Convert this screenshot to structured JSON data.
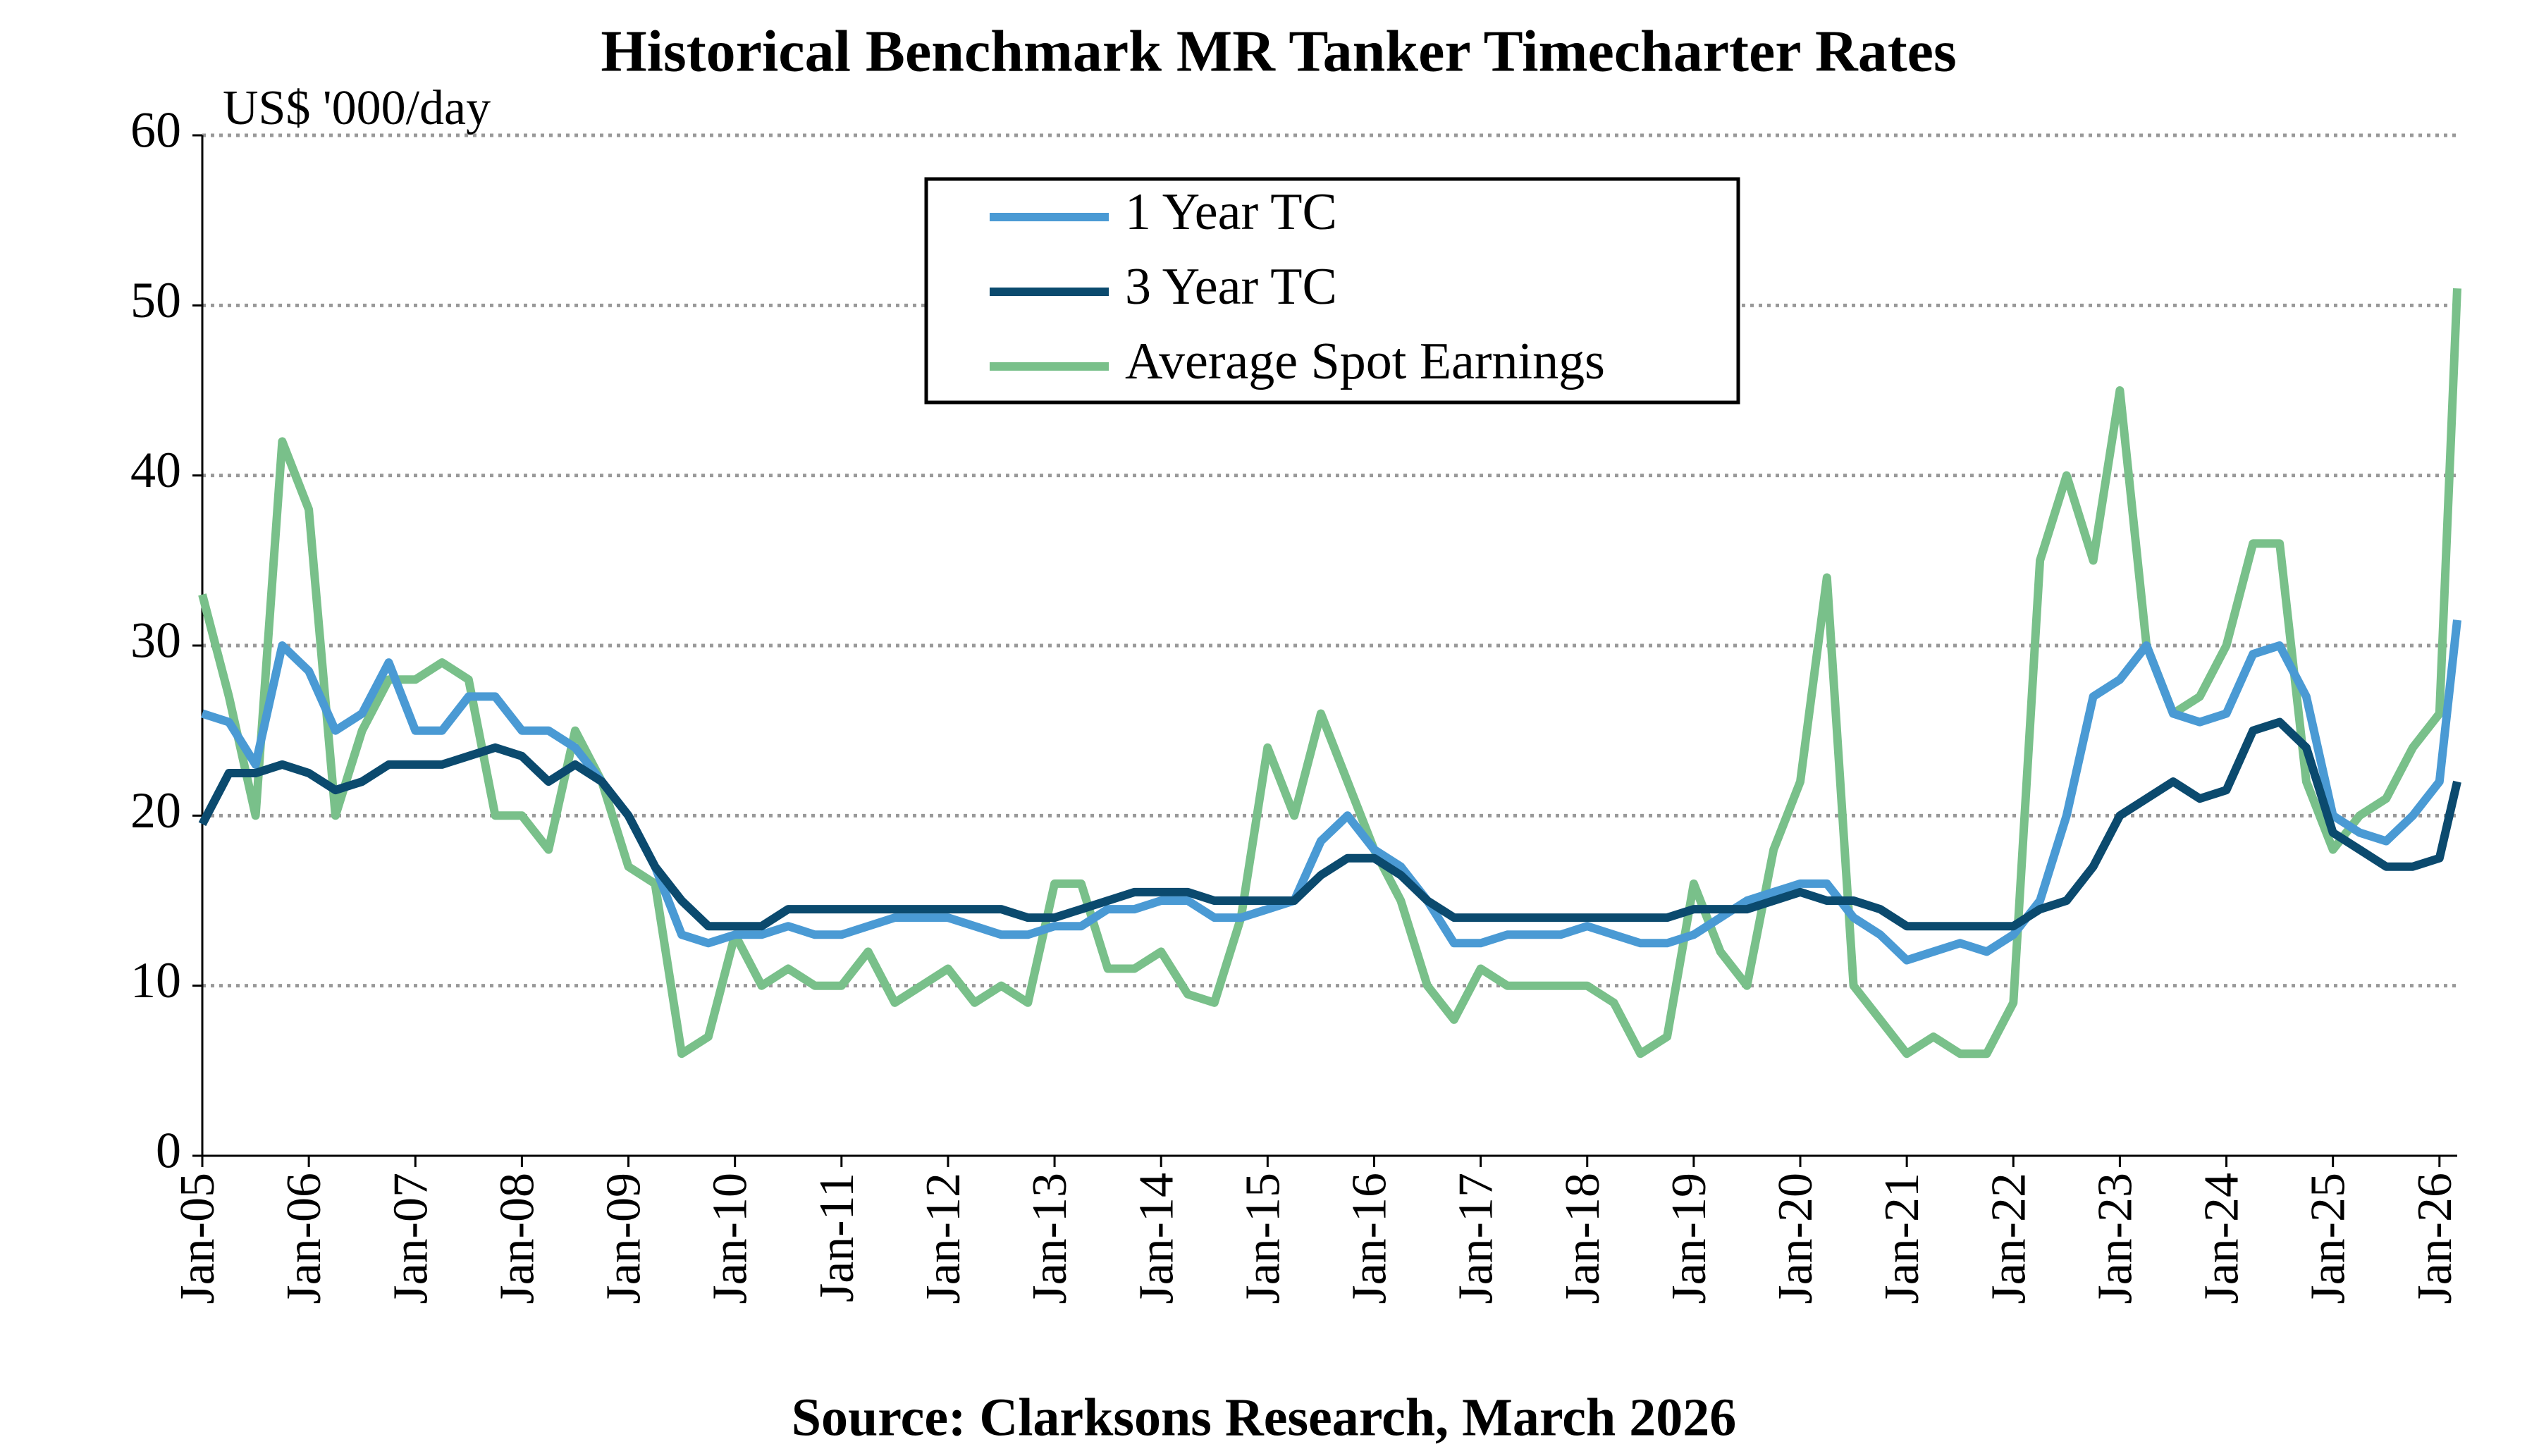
{
  "chart_data": {
    "type": "line",
    "title": "Historical Benchmark MR Tanker Timecharter Rates",
    "y_label": "US$ '000/day",
    "source": "Source: Clarksons Research, March 2026",
    "x": [
      "2005-01",
      "2005-04",
      "2005-07",
      "2005-10",
      "2006-01",
      "2006-04",
      "2006-07",
      "2006-10",
      "2007-01",
      "2007-04",
      "2007-07",
      "2007-10",
      "2008-01",
      "2008-04",
      "2008-07",
      "2008-10",
      "2009-01",
      "2009-04",
      "2009-07",
      "2009-10",
      "2010-01",
      "2010-04",
      "2010-07",
      "2010-10",
      "2011-01",
      "2011-04",
      "2011-07",
      "2011-10",
      "2012-01",
      "2012-04",
      "2012-07",
      "2012-10",
      "2013-01",
      "2013-04",
      "2013-07",
      "2013-10",
      "2014-01",
      "2014-04",
      "2014-07",
      "2014-10",
      "2015-01",
      "2015-04",
      "2015-07",
      "2015-10",
      "2016-01",
      "2016-04",
      "2016-07",
      "2016-10",
      "2017-01",
      "2017-04",
      "2017-07",
      "2017-10",
      "2018-01",
      "2018-04",
      "2018-07",
      "2018-10",
      "2019-01",
      "2019-04",
      "2019-07",
      "2019-10",
      "2020-01",
      "2020-04",
      "2020-07",
      "2020-10",
      "2021-01",
      "2021-04",
      "2021-07",
      "2021-10",
      "2022-01",
      "2022-04",
      "2022-07",
      "2022-10",
      "2023-01",
      "2023-04",
      "2023-07",
      "2023-10",
      "2024-01",
      "2024-04",
      "2024-07",
      "2024-10",
      "2025-01",
      "2025-04",
      "2025-07",
      "2025-10",
      "2026-01",
      "2026-03"
    ],
    "series": [
      {
        "name": "1 Year TC",
        "color": "#4a9ad4",
        "values": [
          26,
          25.5,
          23,
          30,
          28.5,
          25,
          26,
          29,
          25,
          25,
          27,
          27,
          25,
          25,
          24,
          22,
          20,
          17,
          13,
          12.5,
          13,
          13,
          13.5,
          13,
          13,
          13.5,
          14,
          14,
          14,
          13.5,
          13,
          13,
          13.5,
          13.5,
          14.5,
          14.5,
          15,
          15,
          14,
          14,
          14.5,
          15,
          18.5,
          20,
          18,
          17,
          15,
          12.5,
          12.5,
          13,
          13,
          13,
          13.5,
          13,
          12.5,
          12.5,
          13,
          14,
          15,
          15.5,
          16,
          16,
          14,
          13,
          11.5,
          12,
          12.5,
          12,
          13,
          15,
          20,
          27,
          28,
          30,
          26,
          25.5,
          26,
          29.5,
          30,
          27,
          20,
          19,
          18.5,
          20,
          22,
          31.5
        ]
      },
      {
        "name": "3 Year TC",
        "color": "#0b4a6e",
        "values": [
          19.5,
          22.5,
          22.5,
          23,
          22.5,
          21.5,
          22,
          23,
          23,
          23,
          23.5,
          24,
          23.5,
          22,
          23,
          22,
          20,
          17,
          15,
          13.5,
          13.5,
          13.5,
          14.5,
          14.5,
          14.5,
          14.5,
          14.5,
          14.5,
          14.5,
          14.5,
          14.5,
          14,
          14,
          14.5,
          15,
          15.5,
          15.5,
          15.5,
          15,
          15,
          15,
          15,
          16.5,
          17.5,
          17.5,
          16.5,
          15,
          14,
          14,
          14,
          14,
          14,
          14,
          14,
          14,
          14,
          14.5,
          14.5,
          14.5,
          15,
          15.5,
          15,
          15,
          14.5,
          13.5,
          13.5,
          13.5,
          13.5,
          13.5,
          14.5,
          15,
          17,
          20,
          21,
          22,
          21,
          21.5,
          25,
          25.5,
          24,
          19,
          18,
          17,
          17,
          17.5,
          22
        ]
      },
      {
        "name": "Average Spot Earnings",
        "color": "#79c08a",
        "values": [
          33,
          27,
          20,
          42,
          38,
          20,
          25,
          28,
          28,
          29,
          28,
          20,
          20,
          18,
          25,
          22,
          17,
          16,
          6,
          7,
          13,
          10,
          11,
          10,
          10,
          12,
          9,
          10,
          11,
          9,
          10,
          9,
          16,
          16,
          11,
          11,
          12,
          9.5,
          9,
          14,
          24,
          20,
          26,
          22,
          18,
          15,
          10,
          8,
          11,
          10,
          10,
          10,
          10,
          9,
          6,
          7,
          16,
          12,
          10,
          18,
          22,
          34,
          10,
          8,
          6,
          7,
          6,
          6,
          9,
          35,
          40,
          35,
          45,
          30,
          26,
          27,
          30,
          36,
          36,
          22,
          18,
          20,
          21,
          24,
          26,
          51
        ]
      }
    ],
    "xlim": [
      "2005-01",
      "2026-03"
    ],
    "xticks": [
      {
        "value": "2005-01",
        "label": "Jan-05"
      },
      {
        "value": "2006-01",
        "label": "Jan-06"
      },
      {
        "value": "2007-01",
        "label": "Jan-07"
      },
      {
        "value": "2008-01",
        "label": "Jan-08"
      },
      {
        "value": "2009-01",
        "label": "Jan-09"
      },
      {
        "value": "2010-01",
        "label": "Jan-10"
      },
      {
        "value": "2011-01",
        "label": "Jan-11"
      },
      {
        "value": "2012-01",
        "label": "Jan-12"
      },
      {
        "value": "2013-01",
        "label": "Jan-13"
      },
      {
        "value": "2014-01",
        "label": "Jan-14"
      },
      {
        "value": "2015-01",
        "label": "Jan-15"
      },
      {
        "value": "2016-01",
        "label": "Jan-16"
      },
      {
        "value": "2017-01",
        "label": "Jan-17"
      },
      {
        "value": "2018-01",
        "label": "Jan-18"
      },
      {
        "value": "2019-01",
        "label": "Jan-19"
      },
      {
        "value": "2020-01",
        "label": "Jan-20"
      },
      {
        "value": "2021-01",
        "label": "Jan-21"
      },
      {
        "value": "2022-01",
        "label": "Jan-22"
      },
      {
        "value": "2023-01",
        "label": "Jan-23"
      },
      {
        "value": "2024-01",
        "label": "Jan-24"
      },
      {
        "value": "2025-01",
        "label": "Jan-25"
      },
      {
        "value": "2026-01",
        "label": "Jan-26"
      }
    ],
    "ylim": [
      0,
      60
    ],
    "yticks": [
      0,
      10,
      20,
      30,
      40,
      50,
      60
    ],
    "grid": true
  }
}
